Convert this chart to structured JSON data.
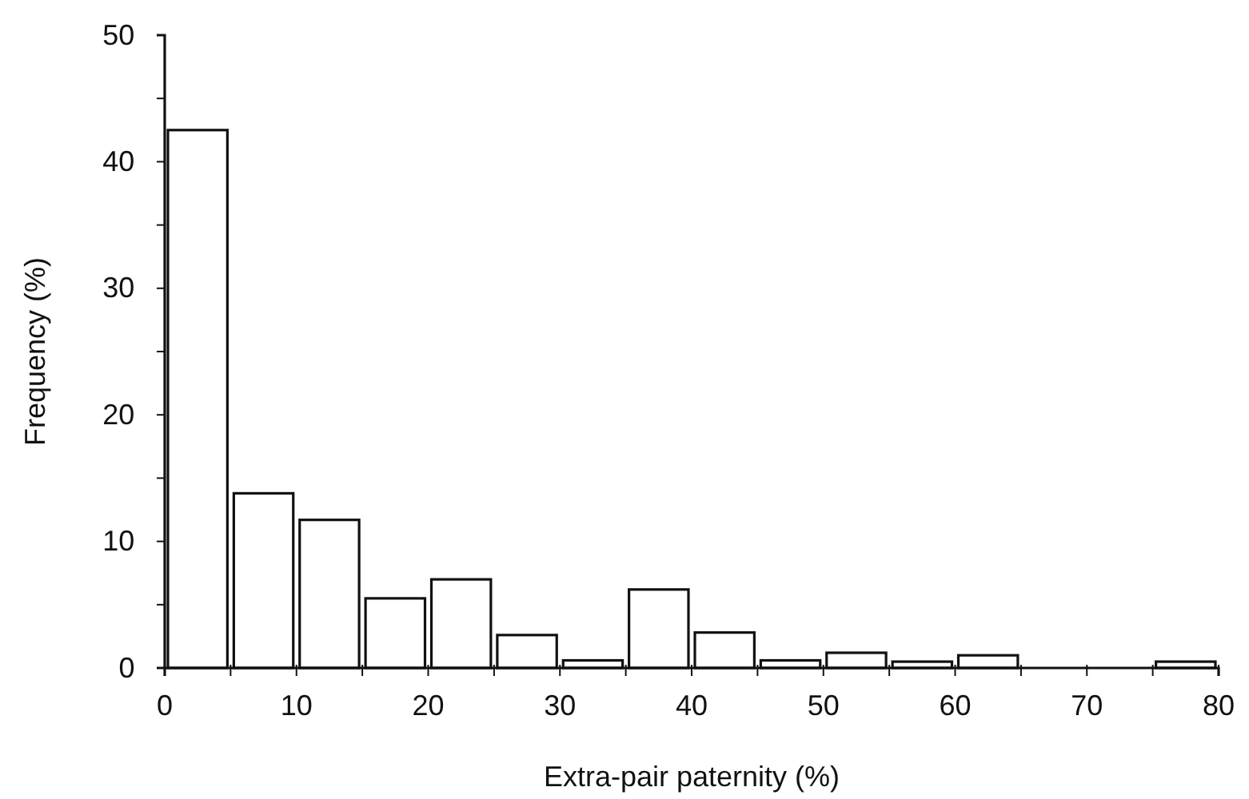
{
  "chart_data": {
    "type": "histogram",
    "xlabel": "Extra-pair paternity (%)",
    "ylabel": "Frequency (%)",
    "bins": [
      0,
      5,
      10,
      15,
      20,
      25,
      30,
      35,
      40,
      45,
      50,
      55,
      60,
      65,
      70,
      75,
      80
    ],
    "values": [
      42.5,
      13.8,
      11.7,
      5.5,
      7.0,
      2.6,
      0.6,
      6.2,
      2.8,
      0.6,
      1.2,
      0.5,
      1.0,
      0,
      0,
      0.5
    ],
    "color": "#ffffff",
    "xlim": [
      0,
      80
    ],
    "xticks": [
      0,
      {
        "value": 5,
        "label": null
      },
      10,
      {
        "value": 15,
        "label": null
      },
      20,
      {
        "value": 25,
        "label": null
      },
      30,
      {
        "value": 35,
        "label": null
      },
      40,
      {
        "value": 45,
        "label": null
      },
      50,
      {
        "value": 55,
        "label": null
      },
      60,
      {
        "value": 65,
        "label": null
      },
      70,
      {
        "value": 75,
        "label": null
      },
      80
    ],
    "ylim": [
      0,
      50
    ],
    "yticks": [
      0,
      {
        "value": 5,
        "label": null
      },
      10,
      {
        "value": 15,
        "label": null
      },
      20,
      {
        "value": 25,
        "label": null
      },
      30,
      {
        "value": 35,
        "label": null
      },
      40,
      {
        "value": 45,
        "label": null
      },
      50
    ],
    "grid": false
  }
}
